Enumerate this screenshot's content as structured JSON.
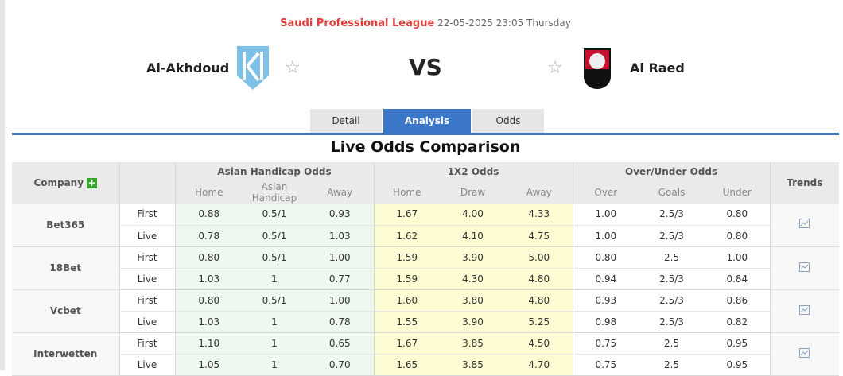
{
  "match": {
    "league": "Saudi Professional League",
    "datetime": "22-05-2025 23:05 Thursday",
    "home": "Al-Akhdoud",
    "away": "Al Raed",
    "vs": "VS"
  },
  "tabs": [
    {
      "label": "Detail"
    },
    {
      "label": "Analysis",
      "active": true
    },
    {
      "label": "Odds"
    }
  ],
  "title": "Live Odds Comparison",
  "table": {
    "headers": {
      "company": "Company",
      "ah": "Asian Handicap Odds",
      "x12": "1X2 Odds",
      "ou": "Over/Under Odds",
      "trends": "Trends"
    },
    "sub": {
      "ah": [
        "Home",
        "Asian Handicap",
        "Away"
      ],
      "x12": [
        "Home",
        "Draw",
        "Away"
      ],
      "ou": [
        "Over",
        "Goals",
        "Under"
      ]
    },
    "companies": [
      {
        "name": "Bet365",
        "rows": [
          {
            "type": "First",
            "ah": [
              "0.88",
              "0.5/1",
              "0.93"
            ],
            "x12": [
              "1.67",
              "4.00",
              "4.33"
            ],
            "ou": [
              "1.00",
              "2.5/3",
              "0.80"
            ]
          },
          {
            "type": "Live",
            "ah": [
              "0.78",
              "0.5/1",
              "1.03"
            ],
            "x12": [
              "1.62",
              "4.10",
              "4.75"
            ],
            "ou": [
              "1.00",
              "2.5/3",
              "0.80"
            ]
          }
        ]
      },
      {
        "name": "18Bet",
        "rows": [
          {
            "type": "First",
            "ah": [
              "0.80",
              "0.5/1",
              "1.00"
            ],
            "x12": [
              "1.59",
              "3.90",
              "5.00"
            ],
            "ou": [
              "0.80",
              "2.5",
              "1.00"
            ]
          },
          {
            "type": "Live",
            "ah": [
              "1.03",
              "1",
              "0.77"
            ],
            "x12": [
              "1.59",
              "4.30",
              "4.80"
            ],
            "ou": [
              "0.94",
              "2.5/3",
              "0.84"
            ]
          }
        ]
      },
      {
        "name": "Vcbet",
        "rows": [
          {
            "type": "First",
            "ah": [
              "0.80",
              "0.5/1",
              "1.00"
            ],
            "x12": [
              "1.60",
              "3.80",
              "4.80"
            ],
            "ou": [
              "0.93",
              "2.5/3",
              "0.86"
            ]
          },
          {
            "type": "Live",
            "ah": [
              "1.03",
              "1",
              "0.78"
            ],
            "x12": [
              "1.55",
              "3.90",
              "5.25"
            ],
            "ou": [
              "0.98",
              "2.5/3",
              "0.82"
            ]
          }
        ]
      },
      {
        "name": "Interwetten",
        "rows": [
          {
            "type": "First",
            "ah": [
              "1.10",
              "1",
              "0.65"
            ],
            "x12": [
              "1.67",
              "3.85",
              "4.50"
            ],
            "ou": [
              "0.75",
              "2.5",
              "0.95"
            ]
          },
          {
            "type": "Live",
            "ah": [
              "1.05",
              "1",
              "0.70"
            ],
            "x12": [
              "1.65",
              "3.85",
              "4.70"
            ],
            "ou": [
              "0.75",
              "2.5",
              "0.95"
            ]
          }
        ]
      }
    ]
  },
  "colors": {
    "accent": "#3b77c8",
    "league": "#e03c3c",
    "ah_bg": "#eef8ee",
    "x12_bg": "#fdfcd3",
    "home_logo": "#7cc0e8",
    "away_logo": "#c8102e"
  }
}
